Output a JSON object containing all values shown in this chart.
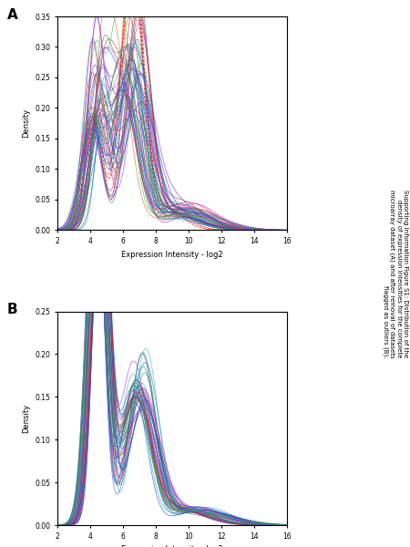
{
  "title_text": "Supporting Information Figure S1: Distribution of the\ndensity of expression intensities for the complete\nmicroarray dataset (A) and after removal of datasets\nflagged as outliers (B).",
  "xlabel": "Expression Intensity - log2",
  "ylabel": "Density",
  "xlim": [
    2,
    16
  ],
  "ylim_A": [
    0.0,
    0.35
  ],
  "ylim_B": [
    0.0,
    0.25
  ],
  "yticks_A": [
    0.0,
    0.05,
    0.1,
    0.15,
    0.2,
    0.25,
    0.3,
    0.35
  ],
  "yticks_B": [
    0.0,
    0.05,
    0.1,
    0.15,
    0.2,
    0.25
  ],
  "xticks": [
    2,
    4,
    6,
    8,
    10,
    12,
    14,
    16
  ],
  "label_A": "A",
  "label_B": "B",
  "n_curves_A": 52,
  "n_curves_B": 42,
  "bg_color": "#ffffff"
}
